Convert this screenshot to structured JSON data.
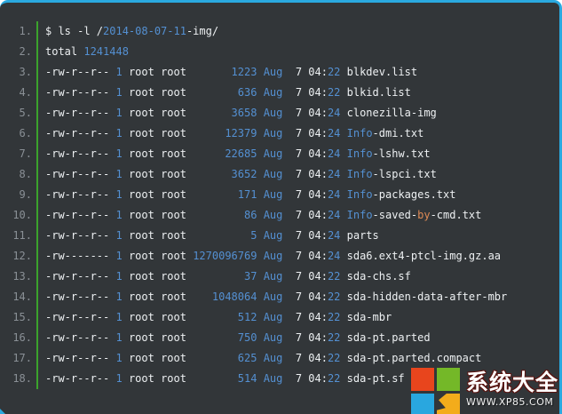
{
  "watermark": {
    "site_name": "系统大全",
    "site_url": "WWW.XP85.COM",
    "logo_colors": {
      "red": "#e8451d",
      "green": "#74b828",
      "blue": "#29a7df",
      "yellow": "#f3ac1b"
    }
  },
  "terminal": {
    "colors": {
      "background": "#323639",
      "border": "#2aa9e0",
      "gutter_line": "#3ba32c",
      "line_number": "#8a9096",
      "text": "#edf0f2",
      "number_blue": "#5490d2",
      "keyword_orange": "#de8a55"
    },
    "command": "$ ls -l /2014-08-07-11-img/",
    "total_label": "total",
    "total_value": "1241448",
    "rows": [
      {
        "num": "1.",
        "segments": [
          {
            "t": "$ ls -l /",
            "c": "w"
          },
          {
            "t": "2014-08-07-11",
            "c": "b"
          },
          {
            "t": "-img/",
            "c": "w"
          }
        ]
      },
      {
        "num": "2.",
        "segments": [
          {
            "t": "total ",
            "c": "w"
          },
          {
            "t": "1241448",
            "c": "b"
          }
        ]
      },
      {
        "num": "3.",
        "segments": [
          {
            "t": "-rw-r--r-- ",
            "c": "w"
          },
          {
            "t": "1",
            "c": "b"
          },
          {
            "t": " root root ",
            "c": "w"
          },
          {
            "t": "      1223",
            "c": "b"
          },
          {
            "t": " ",
            "c": "w"
          },
          {
            "t": "Aug",
            "c": "b"
          },
          {
            "t": "  7 04:",
            "c": "w"
          },
          {
            "t": "22",
            "c": "b"
          },
          {
            "t": " blkdev.list",
            "c": "w"
          }
        ]
      },
      {
        "num": "4.",
        "segments": [
          {
            "t": "-rw-r--r-- ",
            "c": "w"
          },
          {
            "t": "1",
            "c": "b"
          },
          {
            "t": " root root ",
            "c": "w"
          },
          {
            "t": "       636",
            "c": "b"
          },
          {
            "t": " ",
            "c": "w"
          },
          {
            "t": "Aug",
            "c": "b"
          },
          {
            "t": "  7 04:",
            "c": "w"
          },
          {
            "t": "22",
            "c": "b"
          },
          {
            "t": " blkid.list",
            "c": "w"
          }
        ]
      },
      {
        "num": "5.",
        "segments": [
          {
            "t": "-rw-r--r-- ",
            "c": "w"
          },
          {
            "t": "1",
            "c": "b"
          },
          {
            "t": " root root ",
            "c": "w"
          },
          {
            "t": "      3658",
            "c": "b"
          },
          {
            "t": " ",
            "c": "w"
          },
          {
            "t": "Aug",
            "c": "b"
          },
          {
            "t": "  7 04:",
            "c": "w"
          },
          {
            "t": "24",
            "c": "b"
          },
          {
            "t": " clonezilla-img",
            "c": "w"
          }
        ]
      },
      {
        "num": "6.",
        "segments": [
          {
            "t": "-rw-r--r-- ",
            "c": "w"
          },
          {
            "t": "1",
            "c": "b"
          },
          {
            "t": " root root ",
            "c": "w"
          },
          {
            "t": "     12379",
            "c": "b"
          },
          {
            "t": " ",
            "c": "w"
          },
          {
            "t": "Aug",
            "c": "b"
          },
          {
            "t": "  7 04:",
            "c": "w"
          },
          {
            "t": "24",
            "c": "b"
          },
          {
            "t": " ",
            "c": "w"
          },
          {
            "t": "Info",
            "c": "b"
          },
          {
            "t": "-dmi.txt",
            "c": "w"
          }
        ]
      },
      {
        "num": "7.",
        "segments": [
          {
            "t": "-rw-r--r-- ",
            "c": "w"
          },
          {
            "t": "1",
            "c": "b"
          },
          {
            "t": " root root ",
            "c": "w"
          },
          {
            "t": "     22685",
            "c": "b"
          },
          {
            "t": " ",
            "c": "w"
          },
          {
            "t": "Aug",
            "c": "b"
          },
          {
            "t": "  7 04:",
            "c": "w"
          },
          {
            "t": "24",
            "c": "b"
          },
          {
            "t": " ",
            "c": "w"
          },
          {
            "t": "Info",
            "c": "b"
          },
          {
            "t": "-lshw.txt",
            "c": "w"
          }
        ]
      },
      {
        "num": "8.",
        "segments": [
          {
            "t": "-rw-r--r-- ",
            "c": "w"
          },
          {
            "t": "1",
            "c": "b"
          },
          {
            "t": " root root ",
            "c": "w"
          },
          {
            "t": "      3652",
            "c": "b"
          },
          {
            "t": " ",
            "c": "w"
          },
          {
            "t": "Aug",
            "c": "b"
          },
          {
            "t": "  7 04:",
            "c": "w"
          },
          {
            "t": "24",
            "c": "b"
          },
          {
            "t": " ",
            "c": "w"
          },
          {
            "t": "Info",
            "c": "b"
          },
          {
            "t": "-lspci.txt",
            "c": "w"
          }
        ]
      },
      {
        "num": "9.",
        "segments": [
          {
            "t": "-rw-r--r-- ",
            "c": "w"
          },
          {
            "t": "1",
            "c": "b"
          },
          {
            "t": " root root ",
            "c": "w"
          },
          {
            "t": "       171",
            "c": "b"
          },
          {
            "t": " ",
            "c": "w"
          },
          {
            "t": "Aug",
            "c": "b"
          },
          {
            "t": "  7 04:",
            "c": "w"
          },
          {
            "t": "24",
            "c": "b"
          },
          {
            "t": " ",
            "c": "w"
          },
          {
            "t": "Info",
            "c": "b"
          },
          {
            "t": "-packages.txt",
            "c": "w"
          }
        ]
      },
      {
        "num": "10.",
        "segments": [
          {
            "t": "-rw-r--r-- ",
            "c": "w"
          },
          {
            "t": "1",
            "c": "b"
          },
          {
            "t": " root root ",
            "c": "w"
          },
          {
            "t": "        86",
            "c": "b"
          },
          {
            "t": " ",
            "c": "w"
          },
          {
            "t": "Aug",
            "c": "b"
          },
          {
            "t": "  7 04:",
            "c": "w"
          },
          {
            "t": "24",
            "c": "b"
          },
          {
            "t": " ",
            "c": "w"
          },
          {
            "t": "Info",
            "c": "b"
          },
          {
            "t": "-saved-",
            "c": "w"
          },
          {
            "t": "by",
            "c": "o"
          },
          {
            "t": "-cmd.txt",
            "c": "w"
          }
        ]
      },
      {
        "num": "11.",
        "segments": [
          {
            "t": "-rw-r--r-- ",
            "c": "w"
          },
          {
            "t": "1",
            "c": "b"
          },
          {
            "t": " root root ",
            "c": "w"
          },
          {
            "t": "         5",
            "c": "b"
          },
          {
            "t": " ",
            "c": "w"
          },
          {
            "t": "Aug",
            "c": "b"
          },
          {
            "t": "  7 04:",
            "c": "w"
          },
          {
            "t": "24",
            "c": "b"
          },
          {
            "t": " parts",
            "c": "w"
          }
        ]
      },
      {
        "num": "12.",
        "segments": [
          {
            "t": "-rw------- ",
            "c": "w"
          },
          {
            "t": "1",
            "c": "b"
          },
          {
            "t": " root root ",
            "c": "w"
          },
          {
            "t": "1270096769",
            "c": "b"
          },
          {
            "t": " ",
            "c": "w"
          },
          {
            "t": "Aug",
            "c": "b"
          },
          {
            "t": "  7 04:",
            "c": "w"
          },
          {
            "t": "24",
            "c": "b"
          },
          {
            "t": " sda6.ext4-ptcl-img.gz.aa",
            "c": "w"
          }
        ]
      },
      {
        "num": "13.",
        "segments": [
          {
            "t": "-rw-r--r-- ",
            "c": "w"
          },
          {
            "t": "1",
            "c": "b"
          },
          {
            "t": " root root ",
            "c": "w"
          },
          {
            "t": "        37",
            "c": "b"
          },
          {
            "t": " ",
            "c": "w"
          },
          {
            "t": "Aug",
            "c": "b"
          },
          {
            "t": "  7 04:",
            "c": "w"
          },
          {
            "t": "22",
            "c": "b"
          },
          {
            "t": " sda-chs.sf",
            "c": "w"
          }
        ]
      },
      {
        "num": "14.",
        "segments": [
          {
            "t": "-rw-r--r-- ",
            "c": "w"
          },
          {
            "t": "1",
            "c": "b"
          },
          {
            "t": " root root ",
            "c": "w"
          },
          {
            "t": "   1048064",
            "c": "b"
          },
          {
            "t": " ",
            "c": "w"
          },
          {
            "t": "Aug",
            "c": "b"
          },
          {
            "t": "  7 04:",
            "c": "w"
          },
          {
            "t": "22",
            "c": "b"
          },
          {
            "t": " sda-hidden-data-after-mbr",
            "c": "w"
          }
        ]
      },
      {
        "num": "15.",
        "segments": [
          {
            "t": "-rw-r--r-- ",
            "c": "w"
          },
          {
            "t": "1",
            "c": "b"
          },
          {
            "t": " root root ",
            "c": "w"
          },
          {
            "t": "       512",
            "c": "b"
          },
          {
            "t": " ",
            "c": "w"
          },
          {
            "t": "Aug",
            "c": "b"
          },
          {
            "t": "  7 04:",
            "c": "w"
          },
          {
            "t": "22",
            "c": "b"
          },
          {
            "t": " sda-mbr",
            "c": "w"
          }
        ]
      },
      {
        "num": "16.",
        "segments": [
          {
            "t": "-rw-r--r-- ",
            "c": "w"
          },
          {
            "t": "1",
            "c": "b"
          },
          {
            "t": " root root ",
            "c": "w"
          },
          {
            "t": "       750",
            "c": "b"
          },
          {
            "t": " ",
            "c": "w"
          },
          {
            "t": "Aug",
            "c": "b"
          },
          {
            "t": "  7 04:",
            "c": "w"
          },
          {
            "t": "22",
            "c": "b"
          },
          {
            "t": " sda-pt.parted",
            "c": "w"
          }
        ]
      },
      {
        "num": "17.",
        "segments": [
          {
            "t": "-rw-r--r-- ",
            "c": "w"
          },
          {
            "t": "1",
            "c": "b"
          },
          {
            "t": " root root ",
            "c": "w"
          },
          {
            "t": "       625",
            "c": "b"
          },
          {
            "t": " ",
            "c": "w"
          },
          {
            "t": "Aug",
            "c": "b"
          },
          {
            "t": "  7 04:",
            "c": "w"
          },
          {
            "t": "22",
            "c": "b"
          },
          {
            "t": " sda-pt.parted.compact",
            "c": "w"
          }
        ]
      },
      {
        "num": "18.",
        "segments": [
          {
            "t": "-rw-r--r-- ",
            "c": "w"
          },
          {
            "t": "1",
            "c": "b"
          },
          {
            "t": " root root ",
            "c": "w"
          },
          {
            "t": "       514",
            "c": "b"
          },
          {
            "t": " ",
            "c": "w"
          },
          {
            "t": "Aug",
            "c": "b"
          },
          {
            "t": "  7 04:",
            "c": "w"
          },
          {
            "t": "22",
            "c": "b"
          },
          {
            "t": " sda-pt.sf",
            "c": "w"
          }
        ]
      }
    ]
  }
}
